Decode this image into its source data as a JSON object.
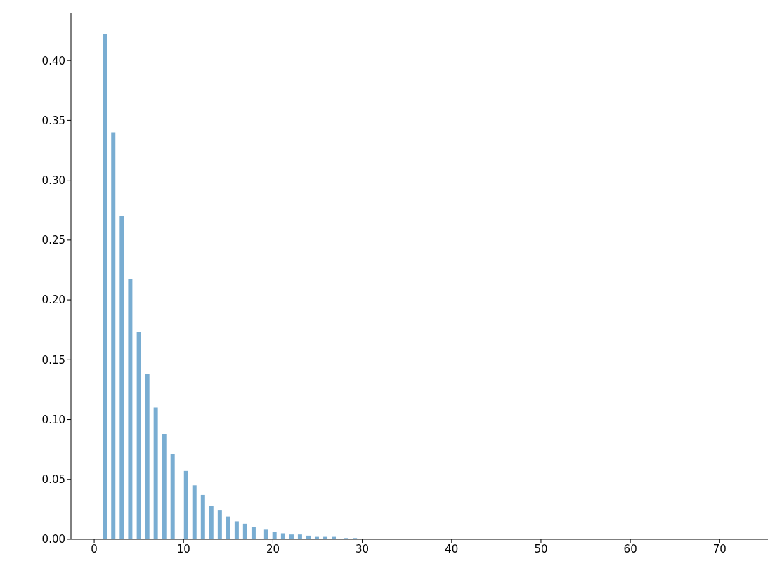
{
  "chart_data": {
    "type": "bar",
    "x": [
      1.19,
      2.13,
      3.08,
      4.03,
      4.99,
      5.94,
      6.88,
      7.83,
      8.77,
      10.27,
      11.21,
      12.16,
      13.1,
      14.05,
      14.99,
      15.94,
      16.88,
      17.83,
      19.24,
      20.17,
      21.13,
      22.08,
      23.02,
      23.97,
      24.91,
      25.86,
      26.8,
      28.22,
      29.17
    ],
    "values": [
      0.422,
      0.34,
      0.27,
      0.217,
      0.173,
      0.138,
      0.11,
      0.088,
      0.071,
      0.057,
      0.045,
      0.037,
      0.028,
      0.024,
      0.019,
      0.015,
      0.013,
      0.01,
      0.008,
      0.006,
      0.005,
      0.004,
      0.004,
      0.003,
      0.002,
      0.002,
      0.002,
      0.001,
      0.001
    ],
    "color": "#79add2",
    "xlim": [
      -2.6,
      75.4
    ],
    "xticks": [
      0,
      10,
      20,
      30,
      40,
      50,
      60,
      70
    ],
    "ylim": [
      0,
      0.44
    ],
    "yticks": [
      {
        "value": 0,
        "label": "0.00"
      },
      {
        "value": 0.05,
        "label": "0.05"
      },
      {
        "value": 0.1,
        "label": "0.10"
      },
      {
        "value": 0.15,
        "label": "0.15"
      },
      {
        "value": 0.2,
        "label": "0.20"
      },
      {
        "value": 0.25,
        "label": "0.25"
      },
      {
        "value": 0.3,
        "label": "0.30"
      },
      {
        "value": 0.35,
        "label": "0.35"
      },
      {
        "value": 0.4,
        "label": "0.40"
      }
    ],
    "grid": false,
    "legend": false
  }
}
